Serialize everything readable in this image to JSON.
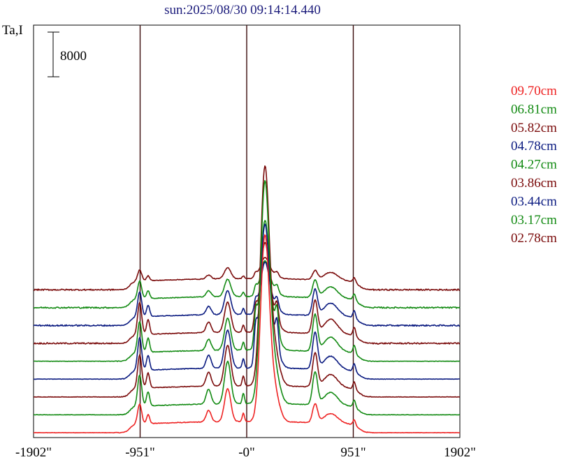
{
  "chart_data": {
    "type": "line",
    "title": "sun:2025/08/30 09:14:14.440",
    "ylabel": "Ta,I",
    "scale_bar": {
      "label": "8000",
      "value": 8000
    },
    "x_tick_labels": [
      "-1902\"",
      "-951\"",
      "-0\"",
      "951\"",
      "1902\""
    ],
    "x_ticks": [
      -1902,
      -951,
      0,
      951,
      1902
    ],
    "xlim": [
      -1902,
      1902
    ],
    "reference_lines": [
      -951,
      0,
      951
    ],
    "baselines": [
      0,
      3200,
      6400,
      9600,
      12800,
      16000,
      19200,
      22400,
      25600
    ],
    "series": [
      {
        "name": "09.70cm",
        "color": "#ee2222",
        "features": {
          "limb": 3600,
          "peak1": 5900,
          "center_peak": 30800,
          "peak2": 3300,
          "peak3": 1700
        }
      },
      {
        "name": "06.81cm",
        "color": "#128a12",
        "features": {
          "limb": 5600,
          "peak1": 7600,
          "center_peak": 36800,
          "peak2": 5800,
          "peak3": 2300
        }
      },
      {
        "name": "05.82cm",
        "color": "#7a0a0a",
        "features": {
          "limb": 6000,
          "peak1": 7300,
          "center_peak": 36300,
          "peak2": 6000,
          "peak3": 2300
        }
      },
      {
        "name": "04.78cm",
        "color": "#0a1a80",
        "features": {
          "limb": 5900,
          "peak1": 6800,
          "center_peak": 23700,
          "peak2": 6500,
          "peak3": 2400
        }
      },
      {
        "name": "04.27cm",
        "color": "#128a12",
        "features": {
          "limb": 5600,
          "peak1": 5700,
          "center_peak": 21400,
          "peak2": 6500,
          "peak3": 2600
        }
      },
      {
        "name": "03.86cm",
        "color": "#7a0a0a",
        "features": {
          "limb": 5800,
          "peak1": 5400,
          "center_peak": 14800,
          "peak2": 5800,
          "peak3": 2600
        }
      },
      {
        "name": "03.44cm",
        "color": "#0a1a80",
        "features": {
          "limb": 4500,
          "peak1": 4300,
          "center_peak": 8600,
          "peak2": 4600,
          "peak3": 2300
        }
      },
      {
        "name": "03.17cm",
        "color": "#128a12",
        "features": {
          "limb": 3200,
          "peak1": 3100,
          "center_peak": 5900,
          "peak2": 3100,
          "peak3": 2000
        }
      },
      {
        "name": "02.78cm",
        "color": "#7a0a0a",
        "features": {
          "limb": 2000,
          "peak1": 2000,
          "center_peak": 3500,
          "peak2": 1600,
          "peak3": 1400
        }
      }
    ]
  }
}
